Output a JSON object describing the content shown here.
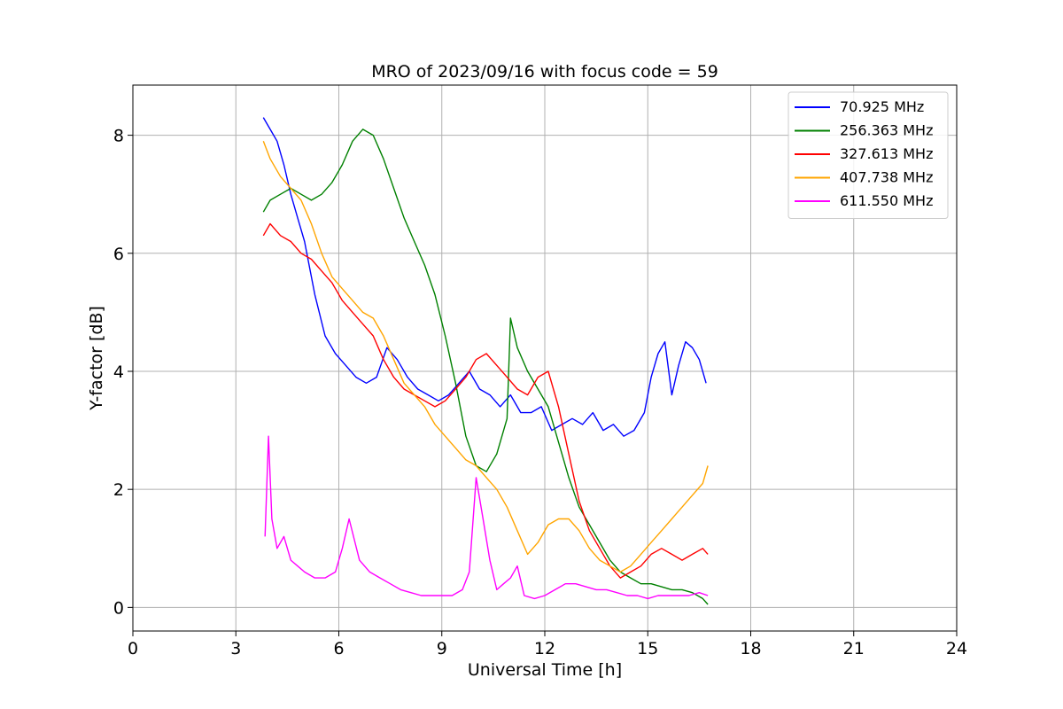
{
  "chart_data": {
    "type": "line",
    "title": "MRO of 2023/09/16 with focus code = 59",
    "xlabel": "Universal Time [h]",
    "ylabel": "Y-factor [dB]",
    "xlim": [
      0,
      24
    ],
    "ylim": [
      -0.4,
      8.85
    ],
    "xticks": [
      0,
      3,
      6,
      9,
      12,
      15,
      18,
      21,
      24
    ],
    "yticks": [
      0,
      2,
      4,
      6,
      8
    ],
    "grid": true,
    "legend_position": "top-right",
    "series": [
      {
        "name": "70.925 MHz",
        "color": "#0000ff",
        "x": [
          3.8,
          4.0,
          4.2,
          4.4,
          4.6,
          4.8,
          5.0,
          5.3,
          5.6,
          5.9,
          6.2,
          6.5,
          6.8,
          7.1,
          7.4,
          7.7,
          8.0,
          8.3,
          8.6,
          8.9,
          9.2,
          9.5,
          9.8,
          10.1,
          10.4,
          10.7,
          11.0,
          11.3,
          11.6,
          11.9,
          12.2,
          12.5,
          12.8,
          13.1,
          13.4,
          13.7,
          14.0,
          14.3,
          14.6,
          14.9,
          15.1,
          15.3,
          15.5,
          15.7,
          15.9,
          16.1,
          16.3,
          16.5,
          16.7
        ],
        "y": [
          8.3,
          8.1,
          7.9,
          7.5,
          7.0,
          6.6,
          6.2,
          5.3,
          4.6,
          4.3,
          4.1,
          3.9,
          3.8,
          3.9,
          4.4,
          4.2,
          3.9,
          3.7,
          3.6,
          3.5,
          3.6,
          3.8,
          4.0,
          3.7,
          3.6,
          3.4,
          3.6,
          3.3,
          3.3,
          3.4,
          3.0,
          3.1,
          3.2,
          3.1,
          3.3,
          3.0,
          3.1,
          2.9,
          3.0,
          3.3,
          3.9,
          4.3,
          4.5,
          3.6,
          4.1,
          4.5,
          4.4,
          4.2,
          3.8
        ]
      },
      {
        "name": "256.363 MHz",
        "color": "#008000",
        "x": [
          3.8,
          4.0,
          4.3,
          4.6,
          4.9,
          5.2,
          5.5,
          5.8,
          6.1,
          6.4,
          6.7,
          7.0,
          7.3,
          7.6,
          7.9,
          8.2,
          8.5,
          8.8,
          9.1,
          9.4,
          9.7,
          10.0,
          10.3,
          10.6,
          10.9,
          11.0,
          11.2,
          11.5,
          11.8,
          12.1,
          12.4,
          12.7,
          13.0,
          13.3,
          13.6,
          13.9,
          14.2,
          14.5,
          14.8,
          15.1,
          15.4,
          15.7,
          16.0,
          16.3,
          16.6,
          16.75
        ],
        "y": [
          6.7,
          6.9,
          7.0,
          7.1,
          7.0,
          6.9,
          7.0,
          7.2,
          7.5,
          7.9,
          8.1,
          8.0,
          7.6,
          7.1,
          6.6,
          6.2,
          5.8,
          5.3,
          4.6,
          3.8,
          2.9,
          2.4,
          2.3,
          2.6,
          3.2,
          4.9,
          4.4,
          4.0,
          3.7,
          3.4,
          2.8,
          2.2,
          1.7,
          1.4,
          1.1,
          0.8,
          0.6,
          0.5,
          0.4,
          0.4,
          0.35,
          0.3,
          0.3,
          0.25,
          0.15,
          0.05
        ]
      },
      {
        "name": "327.613 MHz",
        "color": "#ff0000",
        "x": [
          3.8,
          4.0,
          4.3,
          4.6,
          4.9,
          5.2,
          5.5,
          5.8,
          6.1,
          6.4,
          6.7,
          7.0,
          7.3,
          7.6,
          7.9,
          8.2,
          8.5,
          8.8,
          9.1,
          9.4,
          9.7,
          10.0,
          10.3,
          10.6,
          10.9,
          11.2,
          11.5,
          11.8,
          12.1,
          12.4,
          12.7,
          13.0,
          13.3,
          13.6,
          13.9,
          14.2,
          14.5,
          14.8,
          15.1,
          15.4,
          15.7,
          16.0,
          16.3,
          16.6,
          16.75
        ],
        "y": [
          6.3,
          6.5,
          6.3,
          6.2,
          6.0,
          5.9,
          5.7,
          5.5,
          5.2,
          5.0,
          4.8,
          4.6,
          4.2,
          3.9,
          3.7,
          3.6,
          3.5,
          3.4,
          3.5,
          3.7,
          3.9,
          4.2,
          4.3,
          4.1,
          3.9,
          3.7,
          3.6,
          3.9,
          4.0,
          3.4,
          2.6,
          1.8,
          1.3,
          1.0,
          0.7,
          0.5,
          0.6,
          0.7,
          0.9,
          1.0,
          0.9,
          0.8,
          0.9,
          1.0,
          0.9
        ]
      },
      {
        "name": "407.738 MHz",
        "color": "#ffa500",
        "x": [
          3.8,
          4.0,
          4.3,
          4.6,
          4.9,
          5.2,
          5.5,
          5.8,
          6.1,
          6.4,
          6.7,
          7.0,
          7.3,
          7.6,
          7.9,
          8.2,
          8.5,
          8.8,
          9.1,
          9.4,
          9.7,
          10.0,
          10.3,
          10.6,
          10.9,
          11.2,
          11.5,
          11.8,
          12.1,
          12.4,
          12.7,
          13.0,
          13.3,
          13.6,
          13.9,
          14.2,
          14.5,
          14.8,
          15.1,
          15.4,
          15.7,
          16.0,
          16.3,
          16.6,
          16.75
        ],
        "y": [
          7.9,
          7.6,
          7.3,
          7.1,
          6.9,
          6.5,
          6.0,
          5.6,
          5.4,
          5.2,
          5.0,
          4.9,
          4.6,
          4.2,
          3.8,
          3.6,
          3.4,
          3.1,
          2.9,
          2.7,
          2.5,
          2.4,
          2.2,
          2.0,
          1.7,
          1.3,
          0.9,
          1.1,
          1.4,
          1.5,
          1.5,
          1.3,
          1.0,
          0.8,
          0.7,
          0.6,
          0.7,
          0.9,
          1.1,
          1.3,
          1.5,
          1.7,
          1.9,
          2.1,
          2.4
        ]
      },
      {
        "name": "611.550 MHz",
        "color": "#ff00ff",
        "x": [
          3.85,
          3.95,
          4.05,
          4.2,
          4.4,
          4.6,
          4.8,
          5.0,
          5.3,
          5.6,
          5.9,
          6.1,
          6.3,
          6.6,
          6.9,
          7.2,
          7.5,
          7.8,
          8.1,
          8.4,
          8.7,
          9.0,
          9.3,
          9.6,
          9.8,
          10.0,
          10.2,
          10.4,
          10.6,
          10.8,
          11.0,
          11.2,
          11.4,
          11.7,
          12.0,
          12.3,
          12.6,
          12.9,
          13.2,
          13.5,
          13.8,
          14.1,
          14.4,
          14.7,
          15.0,
          15.3,
          15.6,
          15.9,
          16.2,
          16.5,
          16.75
        ],
        "y": [
          1.2,
          2.9,
          1.5,
          1.0,
          1.2,
          0.8,
          0.7,
          0.6,
          0.5,
          0.5,
          0.6,
          1.0,
          1.5,
          0.8,
          0.6,
          0.5,
          0.4,
          0.3,
          0.25,
          0.2,
          0.2,
          0.2,
          0.2,
          0.3,
          0.6,
          2.2,
          1.5,
          0.8,
          0.3,
          0.4,
          0.5,
          0.7,
          0.2,
          0.15,
          0.2,
          0.3,
          0.4,
          0.4,
          0.35,
          0.3,
          0.3,
          0.25,
          0.2,
          0.2,
          0.15,
          0.2,
          0.2,
          0.2,
          0.2,
          0.25,
          0.2
        ]
      }
    ]
  }
}
